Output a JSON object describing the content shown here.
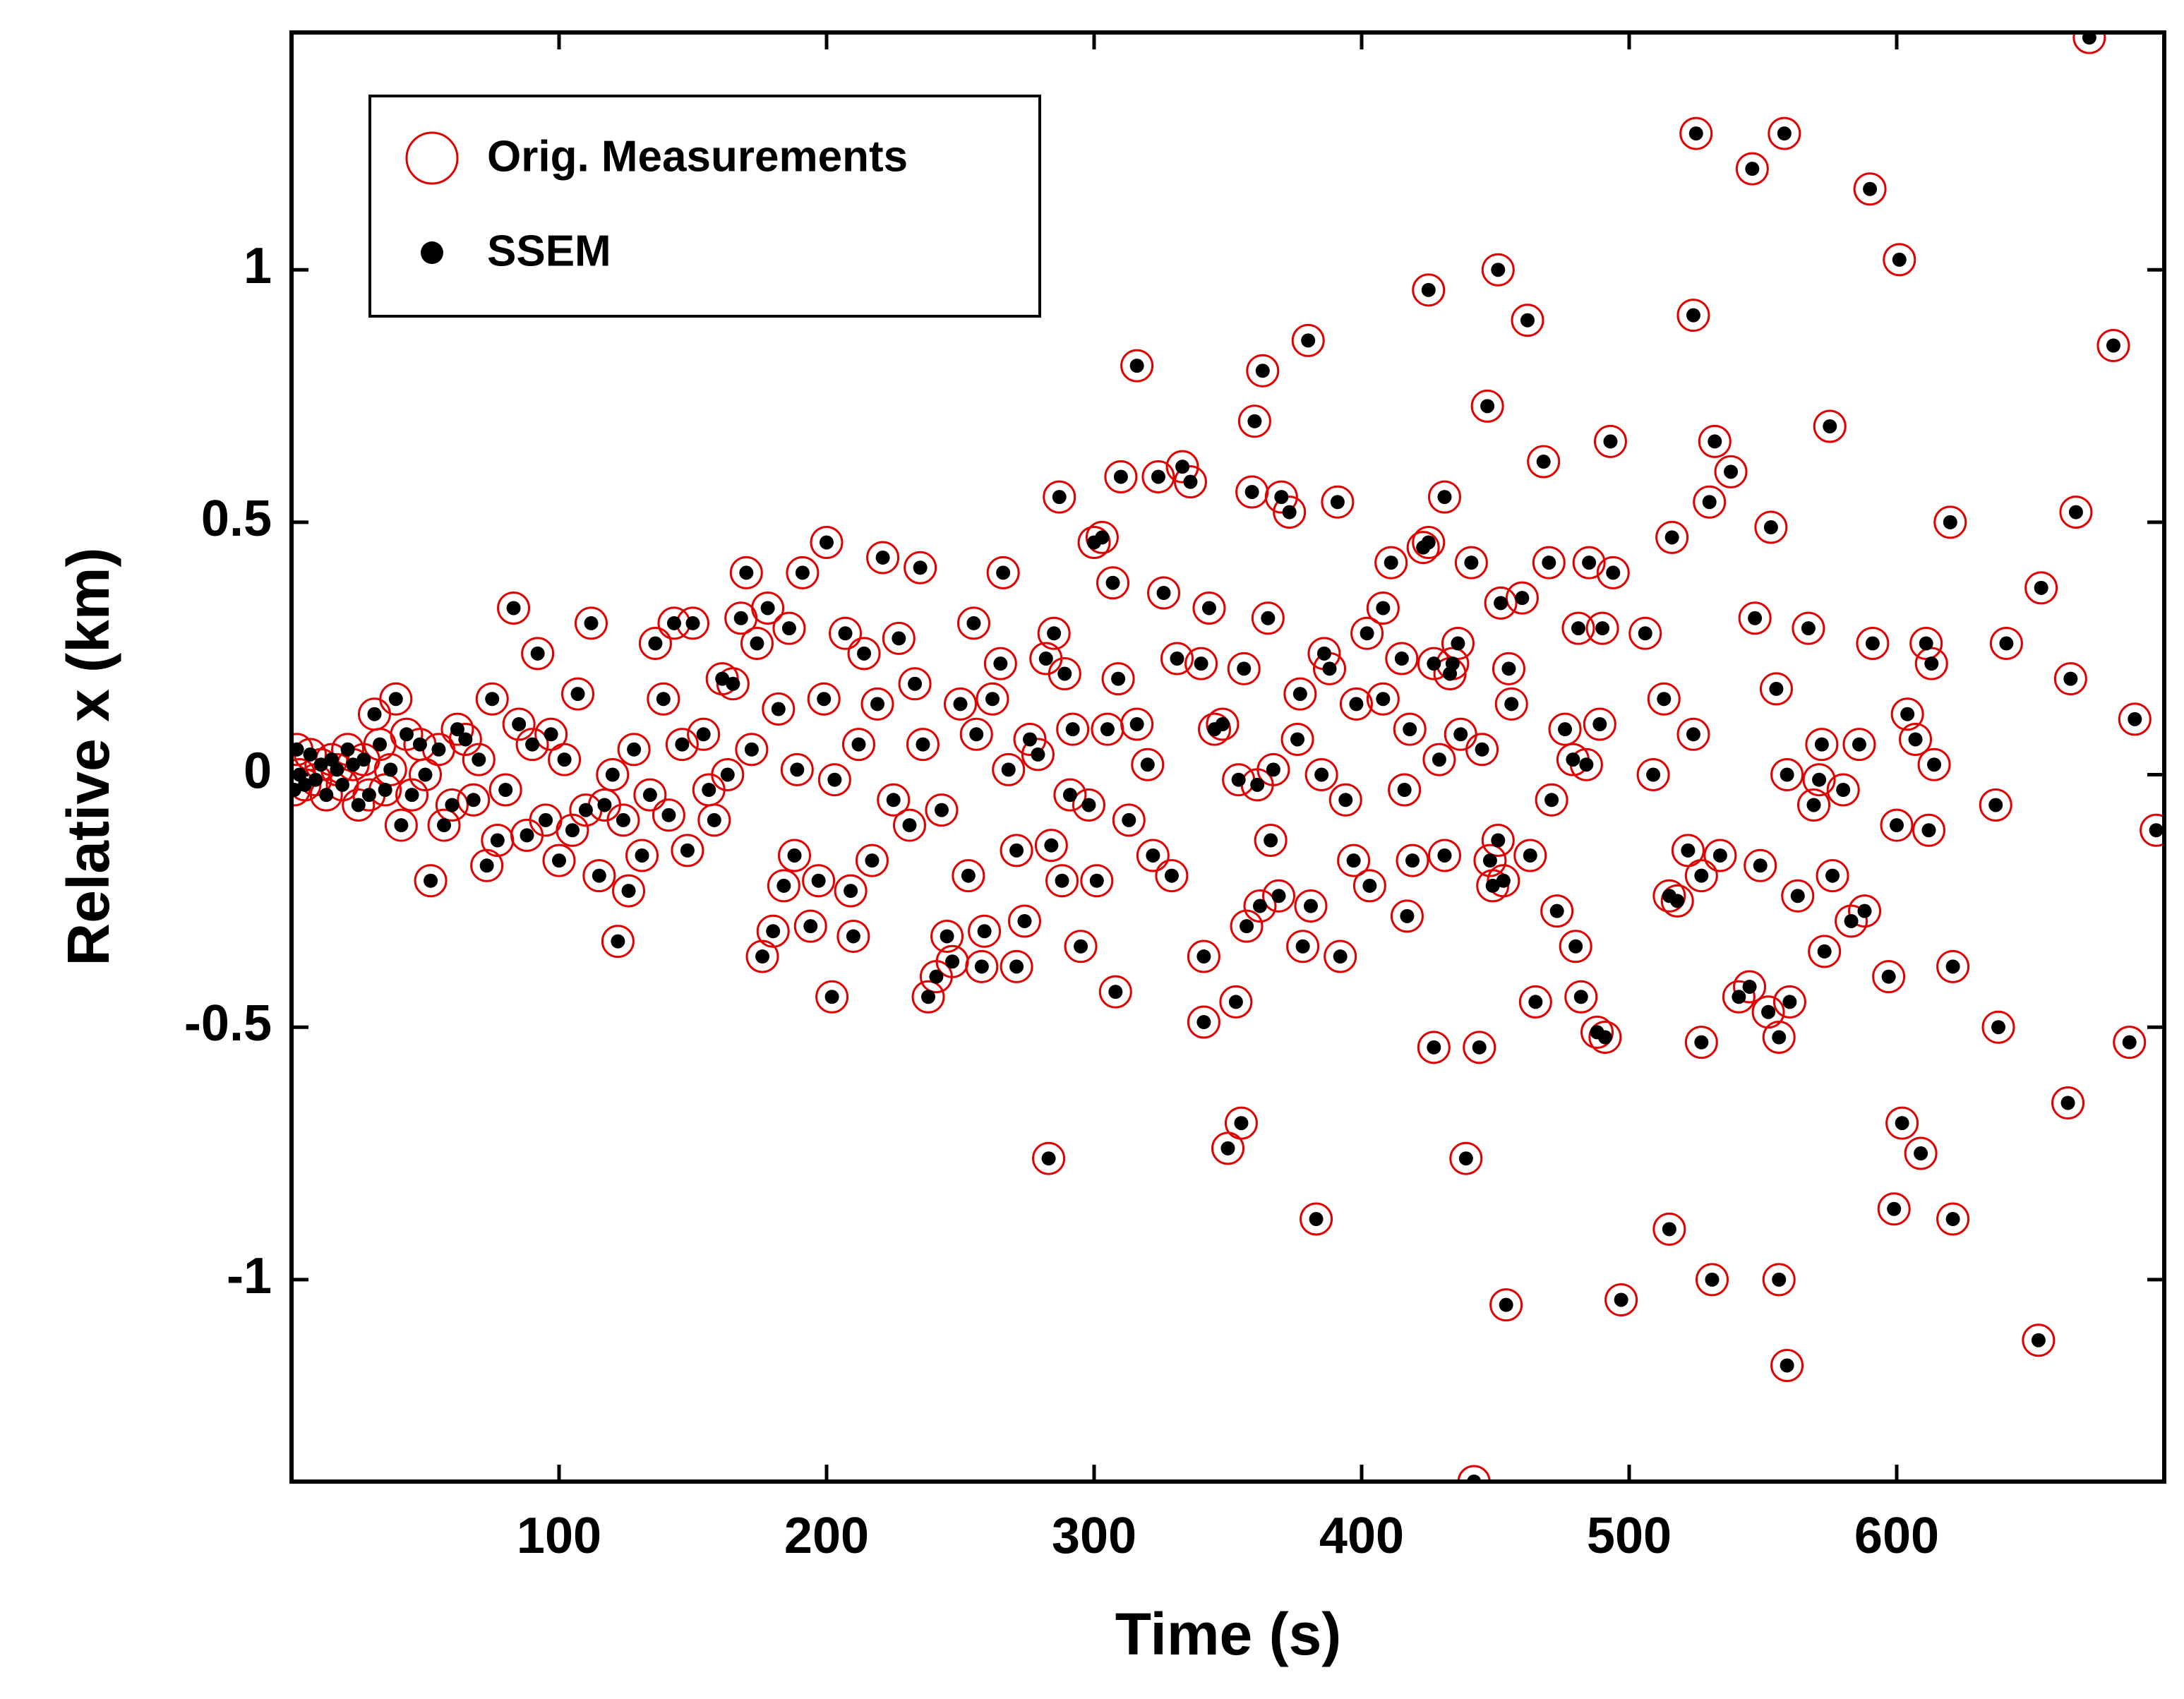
{
  "chart_data": {
    "type": "scatter",
    "xlabel": "Time (s)",
    "ylabel": "Relative x (km)",
    "xlim": [
      0,
      700
    ],
    "xticks": [
      100,
      200,
      300,
      400,
      500,
      600
    ],
    "ylim": [
      -1.4,
      1.47
    ],
    "yticks": [
      -1,
      -0.5,
      0,
      0.5,
      1
    ],
    "legend": "upper left",
    "x": [
      442,
      672,
      525,
      558,
      546,
      590,
      601,
      451,
      425,
      524,
      462,
      681,
      380,
      316,
      363,
      447,
      575,
      360,
      283,
      439,
      350,
      355,
      383,
      515,
      454,
      497,
      531,
      556,
      559,
      653,
      602,
      609,
      599,
      621,
      664,
      697,
      689,
      687,
      638,
      665,
      667,
      654,
      641,
      637,
      620,
      611,
      613,
      614,
      604,
      607,
      600,
      612,
      621,
      597,
      591,
      588,
      586,
      583,
      580,
      576,
      572,
      571,
      569,
      573,
      567,
      563,
      559,
      555,
      553,
      547,
      549,
      541,
      545,
      552,
      556,
      560,
      538,
      532,
      530,
      527,
      527,
      534,
      524,
      522,
      516,
      513,
      515,
      518,
      509,
      506,
      494,
      493,
      490,
      489,
      485,
      484,
      481,
      480,
      482,
      488,
      491,
      479,
      476,
      473,
      471,
      470,
      468,
      465,
      463,
      460,
      456,
      455,
      453,
      452,
      451,
      448,
      449,
      445,
      444,
      441,
      437,
      436,
      434,
      431,
      431,
      433,
      429,
      427,
      423,
      425,
      427,
      418,
      419,
      417,
      415,
      416,
      411,
      408,
      408,
      403,
      402,
      398,
      394,
      397,
      392,
      391,
      388,
      386,
      385,
      381,
      378,
      377,
      376,
      373,
      370,
      369,
      367,
      366,
      365,
      362,
      361,
      359,
      357,
      356,
      354,
      353,
      348,
      345,
      343,
      341,
      340,
      341,
      336,
      333,
      331,
      329,
      326,
      324,
      322,
      320,
      316,
      313,
      310,
      309,
      307,
      308,
      305,
      303,
      301,
      300,
      298,
      295,
      292,
      291,
      289,
      288,
      287,
      285,
      284,
      282,
      279,
      276,
      274,
      271,
      271,
      268,
      266,
      265,
      262,
      259,
      258,
      256,
      255,
      253,
      250,
      247,
      245,
      243,
      241,
      238,
      236,
      233,
      235,
      231,
      227,
      225,
      221,
      219,
      217,
      214,
      212,
      210,
      209,
      207,
      203,
      202,
      200,
      199,
      197,
      194,
      191,
      189,
      188,
      186,
      184,
      182,
      180,
      178,
      176,
      174,
      172,
      170,
      168,
      165,
      163,
      161,
      158,
      156,
      154,
      150,
      148,
      146,
      143,
      141,
      139,
      136,
      134,
      131,
      128,
      126,
      124,
      122,
      120,
      117,
      115,
      112,
      110,
      107,
      105,
      102,
      100,
      97,
      95,
      92,
      90,
      88,
      85,
      83,
      80,
      77,
      75,
      73,
      70,
      68,
      65,
      62,
      60,
      57,
      55,
      52,
      50,
      48,
      45,
      43,
      41,
      39,
      37,
      35,
      33,
      31,
      29,
      27,
      25,
      23,
      21,
      19,
      17,
      15,
      13,
      11,
      9,
      7,
      5,
      3,
      2,
      1
    ],
    "series": [
      {
        "name": "Orig. Measurements",
        "color": "#e00000",
        "marker": "open",
        "values": [
          -1.4,
          1.46,
          1.27,
          1.27,
          1.2,
          1.16,
          1.02,
          1.0,
          0.96,
          0.91,
          0.9,
          0.85,
          0.86,
          0.81,
          0.8,
          0.73,
          0.69,
          0.7,
          -0.76,
          -0.76,
          -0.74,
          -0.69,
          -0.88,
          -0.9,
          -1.05,
          -1.04,
          -1.0,
          -1.0,
          -1.17,
          -1.12,
          -0.69,
          -0.75,
          -0.86,
          -0.88,
          -0.65,
          -0.11,
          0.11,
          -0.53,
          -0.5,
          0.19,
          0.52,
          0.37,
          0.26,
          -0.06,
          0.5,
          0.26,
          0.22,
          0.02,
          0.12,
          0.07,
          -0.1,
          -0.11,
          -0.38,
          -0.4,
          0.26,
          -0.27,
          0.06,
          -0.29,
          -0.03,
          -0.2,
          0.06,
          -0.01,
          -0.06,
          -0.35,
          0.29,
          -0.24,
          0.0,
          0.17,
          0.49,
          0.31,
          -0.18,
          -0.44,
          -0.42,
          -0.47,
          -0.52,
          -0.45,
          0.6,
          0.66,
          0.54,
          -0.2,
          -0.53,
          -0.16,
          0.08,
          -0.15,
          0.47,
          0.15,
          -0.24,
          -0.25,
          0.0,
          0.28,
          0.4,
          0.66,
          0.29,
          0.1,
          0.42,
          0.02,
          0.29,
          -0.34,
          -0.44,
          -0.51,
          -0.52,
          0.03,
          0.09,
          -0.27,
          -0.05,
          0.42,
          0.62,
          -0.45,
          -0.16,
          0.35,
          0.14,
          0.21,
          -0.21,
          0.34,
          -0.13,
          -0.17,
          -0.22,
          0.05,
          -0.54,
          0.42,
          0.08,
          0.26,
          0.22,
          -0.16,
          0.55,
          0.2,
          0.03,
          0.22,
          0.45,
          0.46,
          -0.54,
          0.09,
          -0.17,
          -0.28,
          0.23,
          -0.03,
          0.42,
          0.33,
          0.15,
          -0.22,
          0.28,
          0.14,
          -0.05,
          -0.17,
          -0.36,
          0.54,
          0.21,
          0.24,
          0.0,
          -0.26,
          -0.34,
          0.16,
          0.07,
          0.52,
          0.55,
          -0.24,
          0.01,
          -0.13,
          0.31,
          -0.26,
          -0.02,
          0.56,
          -0.3,
          0.21,
          -0.01,
          -0.45,
          0.1,
          0.09,
          0.33,
          -0.36,
          0.22,
          -0.49,
          0.58,
          0.61,
          0.23,
          -0.2,
          0.36,
          0.59,
          -0.16,
          0.02,
          0.1,
          -0.09,
          0.59,
          0.19,
          0.38,
          -0.43,
          0.09,
          0.47,
          -0.21,
          0.46,
          -0.06,
          -0.34,
          0.09,
          -0.04,
          0.2,
          -0.21,
          0.55,
          0.28,
          -0.14,
          0.23,
          0.04,
          0.07,
          -0.29,
          -0.38,
          -0.15,
          0.01,
          0.4,
          0.22,
          0.15,
          -0.31,
          -0.38,
          0.08,
          0.3,
          -0.2,
          0.14,
          -0.37,
          -0.32,
          -0.07,
          -0.4,
          -0.44,
          0.06,
          0.18,
          0.41,
          -0.1,
          0.27,
          -0.05,
          0.43,
          0.14,
          -0.17,
          0.24,
          0.06,
          -0.32,
          -0.23,
          0.28,
          -0.01,
          -0.44,
          0.46,
          0.15,
          -0.21,
          -0.3,
          0.4,
          0.01,
          -0.16,
          0.29,
          -0.22,
          0.13,
          -0.31,
          0.33,
          -0.36,
          0.26,
          0.05,
          0.4,
          0.31,
          0.18,
          0.0,
          0.19,
          -0.09,
          -0.03,
          0.08,
          0.3,
          -0.15,
          0.06,
          0.3,
          -0.08,
          0.15,
          0.26,
          -0.04,
          -0.16,
          0.05,
          -0.23,
          -0.09,
          -0.33,
          0.0,
          -0.06,
          -0.2,
          0.3,
          -0.07,
          0.16,
          -0.11,
          0.03,
          -0.17,
          0.08,
          -0.09,
          0.24,
          0.06,
          -0.12,
          0.1,
          0.33,
          -0.03,
          -0.13,
          0.15,
          -0.18,
          0.03,
          -0.05,
          0.07,
          0.09,
          -0.06,
          -0.1,
          0.05,
          -0.21,
          0.0,
          0.06,
          -0.04,
          0.08,
          -0.1,
          0.15,
          0.01,
          -0.03,
          0.06,
          0.12,
          -0.04,
          0.03,
          -0.06,
          0.02,
          0.05,
          -0.02,
          0.01,
          0.03,
          -0.04,
          0.02,
          -0.01,
          0.04,
          -0.02,
          0.0,
          0.05,
          -0.03
        ]
      },
      {
        "name": "SSEM",
        "color": "#000000",
        "marker": "filled",
        "values": [
          -1.4,
          1.46,
          1.27,
          1.27,
          1.2,
          1.16,
          1.02,
          1.0,
          0.96,
          0.91,
          0.9,
          0.85,
          0.86,
          0.81,
          0.8,
          0.73,
          0.69,
          0.7,
          -0.76,
          -0.76,
          -0.74,
          -0.69,
          -0.88,
          -0.9,
          -1.05,
          -1.04,
          -1.0,
          -1.0,
          -1.17,
          -1.12,
          -0.69,
          -0.75,
          -0.86,
          -0.88,
          -0.65,
          -0.11,
          0.11,
          -0.53,
          -0.5,
          0.19,
          0.52,
          0.37,
          0.26,
          -0.06,
          0.5,
          0.26,
          0.22,
          0.02,
          0.12,
          0.07,
          -0.1,
          -0.11,
          -0.38,
          -0.4,
          0.26,
          -0.27,
          0.06,
          -0.29,
          -0.03,
          -0.2,
          0.06,
          -0.01,
          -0.06,
          -0.35,
          0.29,
          -0.24,
          0.0,
          0.17,
          0.49,
          0.31,
          -0.18,
          -0.44,
          -0.42,
          -0.47,
          -0.52,
          -0.45,
          0.6,
          0.66,
          0.54,
          -0.2,
          -0.53,
          -0.16,
          0.08,
          -0.15,
          0.47,
          0.15,
          -0.24,
          -0.25,
          0.0,
          0.28,
          0.4,
          0.66,
          0.29,
          0.1,
          0.42,
          0.02,
          0.29,
          -0.34,
          -0.44,
          -0.51,
          -0.52,
          0.03,
          0.09,
          -0.27,
          -0.05,
          0.42,
          0.62,
          -0.45,
          -0.16,
          0.35,
          0.14,
          0.21,
          -0.21,
          0.34,
          -0.13,
          -0.17,
          -0.22,
          0.05,
          -0.54,
          0.42,
          0.08,
          0.26,
          0.22,
          -0.16,
          0.55,
          0.2,
          0.03,
          0.22,
          0.45,
          0.46,
          -0.54,
          0.09,
          -0.17,
          -0.28,
          0.23,
          -0.03,
          0.42,
          0.33,
          0.15,
          -0.22,
          0.28,
          0.14,
          -0.05,
          -0.17,
          -0.36,
          0.54,
          0.21,
          0.24,
          0.0,
          -0.26,
          -0.34,
          0.16,
          0.07,
          0.52,
          0.55,
          -0.24,
          0.01,
          -0.13,
          0.31,
          -0.26,
          -0.02,
          0.56,
          -0.3,
          0.21,
          -0.01,
          -0.45,
          0.1,
          0.09,
          0.33,
          -0.36,
          0.22,
          -0.49,
          0.58,
          0.61,
          0.23,
          -0.2,
          0.36,
          0.59,
          -0.16,
          0.02,
          0.1,
          -0.09,
          0.59,
          0.19,
          0.38,
          -0.43,
          0.09,
          0.47,
          -0.21,
          0.46,
          -0.06,
          -0.34,
          0.09,
          -0.04,
          0.2,
          -0.21,
          0.55,
          0.28,
          -0.14,
          0.23,
          0.04,
          0.07,
          -0.29,
          -0.38,
          -0.15,
          0.01,
          0.4,
          0.22,
          0.15,
          -0.31,
          -0.38,
          0.08,
          0.3,
          -0.2,
          0.14,
          -0.37,
          -0.32,
          -0.07,
          -0.4,
          -0.44,
          0.06,
          0.18,
          0.41,
          -0.1,
          0.27,
          -0.05,
          0.43,
          0.14,
          -0.17,
          0.24,
          0.06,
          -0.32,
          -0.23,
          0.28,
          -0.01,
          -0.44,
          0.46,
          0.15,
          -0.21,
          -0.3,
          0.4,
          0.01,
          -0.16,
          0.29,
          -0.22,
          0.13,
          -0.31,
          0.33,
          -0.36,
          0.26,
          0.05,
          0.4,
          0.31,
          0.18,
          0.0,
          0.19,
          -0.09,
          -0.03,
          0.08,
          0.3,
          -0.15,
          0.06,
          0.3,
          -0.08,
          0.15,
          0.26,
          -0.04,
          -0.16,
          0.05,
          -0.23,
          -0.09,
          -0.33,
          0.0,
          -0.06,
          -0.2,
          0.3,
          -0.07,
          0.16,
          -0.11,
          0.03,
          -0.17,
          0.08,
          -0.09,
          0.24,
          0.06,
          -0.12,
          0.1,
          0.33,
          -0.03,
          -0.13,
          0.15,
          -0.18,
          0.03,
          -0.05,
          0.07,
          0.09,
          -0.06,
          -0.1,
          0.05,
          -0.21,
          0.0,
          0.06,
          -0.04,
          0.08,
          -0.1,
          0.15,
          0.01,
          -0.03,
          0.06,
          0.12,
          -0.04,
          0.03,
          -0.06,
          0.02,
          0.05,
          -0.02,
          0.01,
          0.03,
          -0.04,
          0.02,
          -0.01,
          0.04,
          -0.02,
          0.0,
          0.05,
          -0.03
        ]
      }
    ]
  }
}
